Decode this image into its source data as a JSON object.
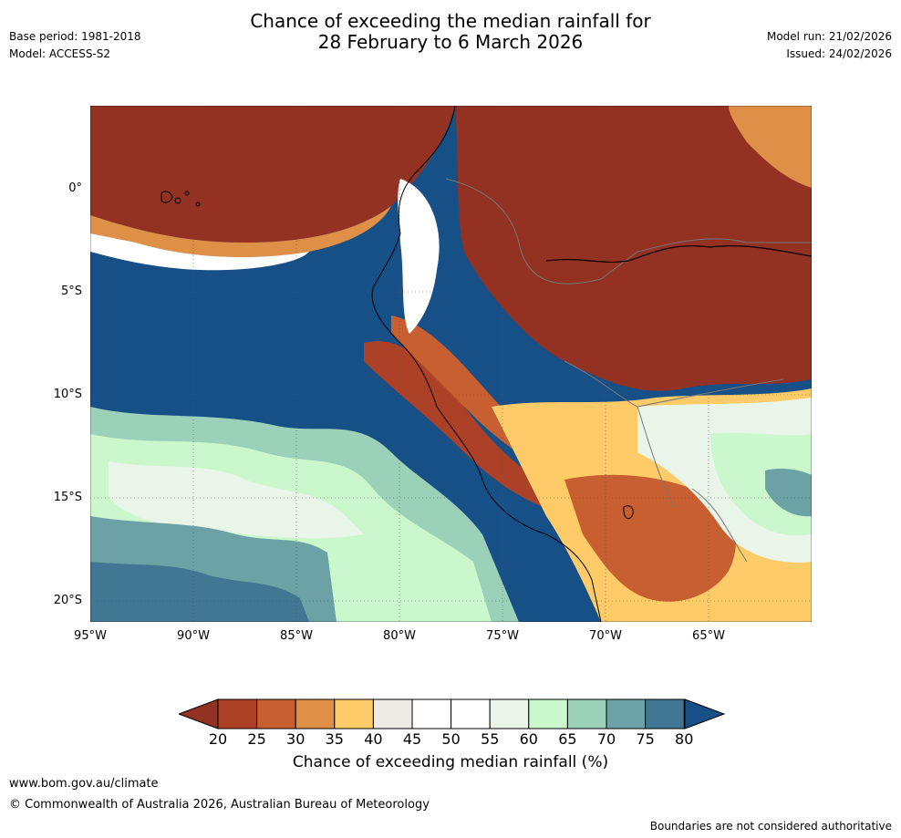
{
  "header": {
    "title_line1": "Chance of exceeding the median rainfall for",
    "title_line2": "28 February to 6 March 2026",
    "base_period": "Base period: 1981-2018",
    "model": "Model: ACCESS-S2",
    "model_run": "Model run: 21/02/2026",
    "issued": "Issued: 24/02/2026"
  },
  "map": {
    "region": "Western South America and eastern Pacific",
    "lat_labels": [
      "0°",
      "5°S",
      "10°S",
      "15°S",
      "20°S"
    ],
    "lon_labels": [
      "95°W",
      "90°W",
      "85°W",
      "80°W",
      "75°W",
      "70°W",
      "65°W"
    ]
  },
  "colorbar": {
    "title": "Chance of exceeding median rainfall (%)",
    "ticks": [
      "20",
      "25",
      "30",
      "35",
      "40",
      "45",
      "50",
      "55",
      "60",
      "65",
      "70",
      "75",
      "80"
    ],
    "colors": [
      "#933122",
      "#ad4128",
      "#c85f30",
      "#e08f47",
      "#fecb68",
      "#ede9e5",
      "#ffffff",
      "#ffffff",
      "#eaf5ea",
      "#caf8cc",
      "#9bd0b9",
      "#6ca2a5",
      "#417792",
      "#174f87"
    ],
    "lower_extend_color": "#933122",
    "upper_extend_color": "#174f87"
  },
  "footer": {
    "website": "www.bom.gov.au/climate",
    "copyright": "© Commonwealth of Australia 2026, Australian Bureau of Meteorology",
    "disclaimer": "Boundaries are not considered authoritative"
  }
}
